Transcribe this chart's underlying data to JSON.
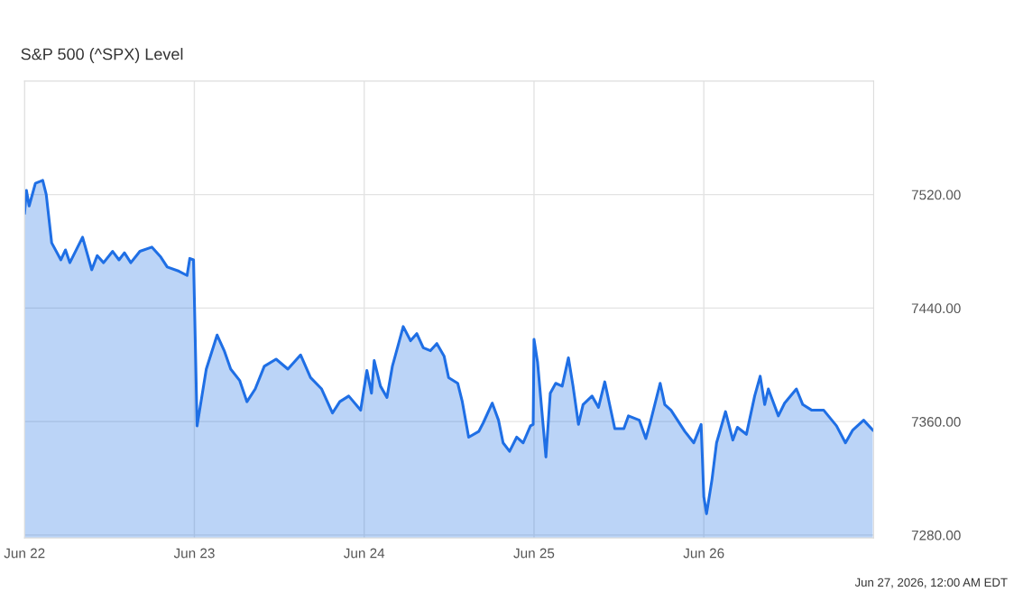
{
  "chart_data": {
    "type": "area",
    "title": "S&P 500 (^SPX) Level",
    "xlim": [
      "2026-06-22T00:00",
      "2026-06-27T00:00"
    ],
    "xticks": [
      {
        "value": "2026-06-22T00:00",
        "label": "Jun 22"
      },
      {
        "value": "2026-06-23T00:00",
        "label": "Jun 23"
      },
      {
        "value": "2026-06-24T00:00",
        "label": "Jun 24"
      },
      {
        "value": "2026-06-25T00:00",
        "label": "Jun 25"
      },
      {
        "value": "2026-06-26T00:00",
        "label": "Jun 26"
      }
    ],
    "ylim": [
      7278,
      7600
    ],
    "yticks": [
      {
        "value": 7280,
        "label": "7280.00"
      },
      {
        "value": 7360,
        "label": "7360.00"
      },
      {
        "value": 7440,
        "label": "7440.00"
      },
      {
        "value": 7520,
        "label": "7520.00"
      }
    ],
    "grid": true,
    "annotations": [
      "Jun 27, 2026, 12:00 AM EDT"
    ],
    "series": [
      {
        "color": "#1f6fe5",
        "x": [
          "2026-06-22T00:00",
          "2026-06-22T00:16",
          "2026-06-22T00:39",
          "2026-06-22T01:32",
          "2026-06-22T02:34",
          "2026-06-22T03:04",
          "2026-06-22T03:50",
          "2026-06-22T05:08",
          "2026-06-22T05:47",
          "2026-06-22T06:24",
          "2026-06-22T08:12",
          "2026-06-22T09:30",
          "2026-06-22T10:16",
          "2026-06-22T11:10",
          "2026-06-22T12:27",
          "2026-06-22T13:21",
          "2026-06-22T14:07",
          "2026-06-22T15:01",
          "2026-06-22T16:18",
          "2026-06-22T17:59",
          "2026-06-22T19:15",
          "2026-06-22T20:10",
          "2026-06-22T21:49",
          "2026-06-22T22:58",
          "2026-06-22T23:21",
          "2026-06-22T23:53",
          "2026-06-23T00:23",
          "2026-06-23T01:41",
          "2026-06-23T03:13",
          "2026-06-23T04:13",
          "2026-06-23T05:08",
          "2026-06-23T06:24",
          "2026-06-23T07:26",
          "2026-06-23T08:36",
          "2026-06-23T09:53",
          "2026-06-23T11:33",
          "2026-06-23T13:13",
          "2026-06-23T15:01",
          "2026-06-23T16:25",
          "2026-06-23T17:59",
          "2026-06-23T19:31",
          "2026-06-23T20:33",
          "2026-06-23T21:49",
          "2026-06-23T23:30",
          "2026-06-24T00:23",
          "2026-06-24T01:02",
          "2026-06-24T01:25",
          "2026-06-24T02:18",
          "2026-06-24T03:13",
          "2026-06-24T03:59",
          "2026-06-24T04:52",
          "2026-06-24T05:31",
          "2026-06-24T06:33",
          "2026-06-24T07:26",
          "2026-06-24T08:21",
          "2026-06-24T09:22",
          "2026-06-24T10:16",
          "2026-06-24T11:18",
          "2026-06-24T11:56",
          "2026-06-24T13:13",
          "2026-06-24T13:52",
          "2026-06-24T14:46",
          "2026-06-24T16:11",
          "2026-06-24T16:49",
          "2026-06-24T18:06",
          "2026-06-24T18:59",
          "2026-06-24T19:38",
          "2026-06-24T20:33",
          "2026-06-24T21:33",
          "2026-06-24T22:28",
          "2026-06-24T23:30",
          "2026-06-24T23:53",
          "2026-06-25T00:00",
          "2026-06-25T00:30",
          "2026-06-25T01:41",
          "2026-06-25T02:18",
          "2026-06-25T03:04",
          "2026-06-25T03:59",
          "2026-06-25T04:52",
          "2026-06-25T05:31",
          "2026-06-25T06:17",
          "2026-06-25T06:56",
          "2026-06-25T08:12",
          "2026-06-25T09:07",
          "2026-06-25T10:00",
          "2026-06-25T11:25",
          "2026-06-25T12:42",
          "2026-06-25T13:21",
          "2026-06-25T14:53",
          "2026-06-25T15:48",
          "2026-06-25T16:25",
          "2026-06-25T17:50",
          "2026-06-25T18:29",
          "2026-06-25T19:22",
          "2026-06-25T21:19",
          "2026-06-25T22:35",
          "2026-06-25T23:37",
          "2026-06-26T00:00",
          "2026-06-26T00:23",
          "2026-06-26T01:09",
          "2026-06-26T01:48",
          "2026-06-26T03:04",
          "2026-06-26T04:06",
          "2026-06-26T04:45",
          "2026-06-26T06:01",
          "2026-06-26T07:11",
          "2026-06-26T07:58",
          "2026-06-26T08:36",
          "2026-06-26T09:07",
          "2026-06-26T10:32",
          "2026-06-26T11:25",
          "2026-06-26T13:05",
          "2026-06-26T13:59",
          "2026-06-26T15:16",
          "2026-06-26T16:57",
          "2026-06-26T18:45",
          "2026-06-26T20:01",
          "2026-06-26T21:03",
          "2026-06-26T22:35",
          "2026-06-26T23:53"
        ],
        "values": [
          7507,
          7523,
          7512,
          7528,
          7530,
          7520,
          7486,
          7474,
          7481,
          7472,
          7490,
          7467,
          7477,
          7472,
          7480,
          7474,
          7479,
          7472,
          7480,
          7483,
          7476,
          7469,
          7466,
          7463,
          7475,
          7474,
          7357,
          7397,
          7421,
          7410,
          7397,
          7389,
          7374,
          7383,
          7399,
          7404,
          7397,
          7407,
          7391,
          7383,
          7366,
          7374,
          7378,
          7368,
          7396,
          7380,
          7403,
          7385,
          7377,
          7399,
          7415,
          7427,
          7417,
          7422,
          7412,
          7410,
          7415,
          7406,
          7391,
          7387,
          7374,
          7349,
          7353,
          7359,
          7373,
          7361,
          7345,
          7339,
          7349,
          7345,
          7357,
          7358,
          7418,
          7402,
          7335,
          7380,
          7387,
          7385,
          7405,
          7385,
          7358,
          7372,
          7378,
          7370,
          7388,
          7355,
          7355,
          7364,
          7361,
          7348,
          7359,
          7387,
          7372,
          7368,
          7353,
          7345,
          7358,
          7307,
          7295,
          7319,
          7345,
          7367,
          7347,
          7356,
          7351,
          7378,
          7392,
          7372,
          7383,
          7364,
          7373,
          7383,
          7372,
          7368,
          7368,
          7357,
          7345,
          7354,
          7361,
          7354
        ]
      }
    ]
  }
}
